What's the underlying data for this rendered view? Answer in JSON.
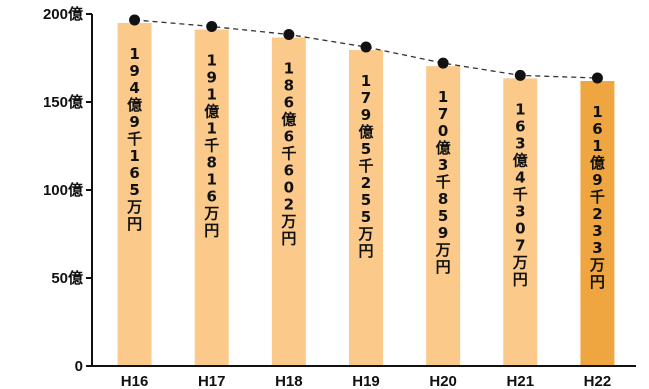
{
  "chart_data": {
    "type": "bar",
    "categories": [
      "H16",
      "H17",
      "H18",
      "H19",
      "H20",
      "H21",
      "H22"
    ],
    "values": [
      194.9165,
      191.1816,
      186.6602,
      179.5255,
      170.3859,
      163.4307,
      161.9233
    ],
    "bar_labels": [
      "194億9千165万円",
      "191億1千816万円",
      "186億6千602万円",
      "179億5千255万円",
      "170億3千859万円",
      "163億4千307万円",
      "161億9千233万円"
    ],
    "y_ticks": [
      {
        "value": 0,
        "label": "0"
      },
      {
        "value": 50,
        "label": "50億"
      },
      {
        "value": 100,
        "label": "100億"
      },
      {
        "value": 150,
        "label": "150億"
      },
      {
        "value": 200,
        "label": "200億"
      }
    ],
    "ylim": [
      0,
      200
    ],
    "line_overlay": "dashed with dot markers",
    "grid": false,
    "colors": {
      "bar": "#fbc98a",
      "bar_highlight": "#f0a640",
      "axis": "#111111",
      "marker": "#111111",
      "line": "#333333"
    },
    "highlight_index": 6
  }
}
